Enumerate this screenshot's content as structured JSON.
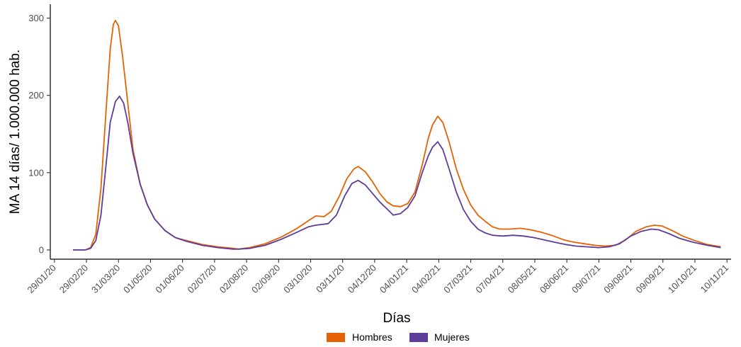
{
  "chart_data": {
    "type": "line",
    "xlabel": "Días",
    "ylabel": "MA 14 días/ 1.000.000 hab.",
    "x_axis": "date",
    "xlim": [
      "2020-01-25",
      "2021-11-14"
    ],
    "ylim": [
      -12,
      318
    ],
    "y_ticks": [
      0,
      100,
      200,
      300
    ],
    "y_tick_labels": [
      "0",
      "100",
      "200",
      "300"
    ],
    "x_ticks": [
      "2020-01-29",
      "2020-02-29",
      "2020-03-31",
      "2020-05-01",
      "2020-06-01",
      "2020-07-02",
      "2020-08-02",
      "2020-09-02",
      "2020-10-03",
      "2020-11-03",
      "2020-12-04",
      "2021-01-04",
      "2021-02-04",
      "2021-03-07",
      "2021-04-07",
      "2021-05-08",
      "2021-06-08",
      "2021-07-09",
      "2021-08-09",
      "2021-09-09",
      "2021-10-10",
      "2021-11-10"
    ],
    "x_tick_labels": [
      "29/01/20",
      "29/02/20",
      "31/03/20",
      "01/05/20",
      "01/06/20",
      "02/07/20",
      "02/08/20",
      "02/09/20",
      "03/10/20",
      "03/11/20",
      "04/12/20",
      "04/01/21",
      "04/02/21",
      "07/03/21",
      "07/04/21",
      "08/05/21",
      "08/06/21",
      "09/07/21",
      "09/08/21",
      "09/09/21",
      "10/10/21",
      "10/11/21"
    ],
    "grid": false,
    "legend_position": "bottom",
    "series": [
      {
        "name": "Hombres",
        "color": "#E66101",
        "points": [
          [
            "2020-02-16",
            0
          ],
          [
            "2020-02-28",
            0
          ],
          [
            "2020-03-04",
            3
          ],
          [
            "2020-03-09",
            20
          ],
          [
            "2020-03-14",
            80
          ],
          [
            "2020-03-19",
            180
          ],
          [
            "2020-03-23",
            260
          ],
          [
            "2020-03-26",
            292
          ],
          [
            "2020-03-28",
            297
          ],
          [
            "2020-03-31",
            290
          ],
          [
            "2020-04-04",
            250
          ],
          [
            "2020-04-09",
            190
          ],
          [
            "2020-04-14",
            130
          ],
          [
            "2020-04-21",
            85
          ],
          [
            "2020-04-28",
            58
          ],
          [
            "2020-05-05",
            40
          ],
          [
            "2020-05-15",
            25
          ],
          [
            "2020-05-25",
            16
          ],
          [
            "2020-06-05",
            12
          ],
          [
            "2020-06-20",
            7
          ],
          [
            "2020-07-05",
            4
          ],
          [
            "2020-07-20",
            2
          ],
          [
            "2020-07-25",
            1
          ],
          [
            "2020-08-05",
            3
          ],
          [
            "2020-08-20",
            8
          ],
          [
            "2020-09-05",
            17
          ],
          [
            "2020-09-20",
            28
          ],
          [
            "2020-10-01",
            38
          ],
          [
            "2020-10-08",
            44
          ],
          [
            "2020-10-16",
            43
          ],
          [
            "2020-10-23",
            50
          ],
          [
            "2020-10-31",
            70
          ],
          [
            "2020-11-07",
            92
          ],
          [
            "2020-11-14",
            105
          ],
          [
            "2020-11-18",
            108
          ],
          [
            "2020-11-25",
            101
          ],
          [
            "2020-12-02",
            88
          ],
          [
            "2020-12-09",
            73
          ],
          [
            "2020-12-16",
            62
          ],
          [
            "2020-12-22",
            57
          ],
          [
            "2020-12-29",
            56
          ],
          [
            "2021-01-05",
            60
          ],
          [
            "2021-01-12",
            75
          ],
          [
            "2021-01-19",
            110
          ],
          [
            "2021-01-25",
            145
          ],
          [
            "2021-01-29",
            162
          ],
          [
            "2021-02-03",
            173
          ],
          [
            "2021-02-08",
            165
          ],
          [
            "2021-02-14",
            140
          ],
          [
            "2021-02-21",
            105
          ],
          [
            "2021-02-28",
            78
          ],
          [
            "2021-03-07",
            58
          ],
          [
            "2021-03-14",
            45
          ],
          [
            "2021-03-21",
            37
          ],
          [
            "2021-03-28",
            30
          ],
          [
            "2021-04-04",
            27
          ],
          [
            "2021-04-14",
            27
          ],
          [
            "2021-04-24",
            28
          ],
          [
            "2021-05-04",
            26
          ],
          [
            "2021-05-14",
            23
          ],
          [
            "2021-05-24",
            19
          ],
          [
            "2021-06-05",
            13
          ],
          [
            "2021-06-15",
            10
          ],
          [
            "2021-06-25",
            8
          ],
          [
            "2021-07-05",
            6
          ],
          [
            "2021-07-15",
            5
          ],
          [
            "2021-07-25",
            6
          ],
          [
            "2021-08-04",
            13
          ],
          [
            "2021-08-14",
            24
          ],
          [
            "2021-08-24",
            30
          ],
          [
            "2021-09-01",
            32
          ],
          [
            "2021-09-08",
            31
          ],
          [
            "2021-09-18",
            25
          ],
          [
            "2021-09-28",
            18
          ],
          [
            "2021-10-10",
            12
          ],
          [
            "2021-10-22",
            7
          ],
          [
            "2021-11-04",
            4
          ]
        ]
      },
      {
        "name": "Mujeres",
        "color": "#5E3C99",
        "points": [
          [
            "2020-02-16",
            0
          ],
          [
            "2020-02-28",
            0
          ],
          [
            "2020-03-04",
            2
          ],
          [
            "2020-03-09",
            12
          ],
          [
            "2020-03-14",
            45
          ],
          [
            "2020-03-19",
            110
          ],
          [
            "2020-03-23",
            165
          ],
          [
            "2020-03-28",
            192
          ],
          [
            "2020-04-01",
            199
          ],
          [
            "2020-04-05",
            190
          ],
          [
            "2020-04-09",
            165
          ],
          [
            "2020-04-14",
            125
          ],
          [
            "2020-04-21",
            85
          ],
          [
            "2020-04-28",
            58
          ],
          [
            "2020-05-05",
            40
          ],
          [
            "2020-05-15",
            25
          ],
          [
            "2020-05-25",
            16
          ],
          [
            "2020-06-05",
            11
          ],
          [
            "2020-06-20",
            6
          ],
          [
            "2020-07-05",
            3
          ],
          [
            "2020-07-20",
            1
          ],
          [
            "2020-07-25",
            1
          ],
          [
            "2020-08-05",
            2
          ],
          [
            "2020-08-20",
            6
          ],
          [
            "2020-09-05",
            14
          ],
          [
            "2020-09-20",
            23
          ],
          [
            "2020-10-01",
            30
          ],
          [
            "2020-10-08",
            32
          ],
          [
            "2020-10-20",
            34
          ],
          [
            "2020-10-28",
            45
          ],
          [
            "2020-11-05",
            70
          ],
          [
            "2020-11-12",
            86
          ],
          [
            "2020-11-18",
            90
          ],
          [
            "2020-11-25",
            84
          ],
          [
            "2020-12-02",
            73
          ],
          [
            "2020-12-09",
            62
          ],
          [
            "2020-12-16",
            53
          ],
          [
            "2020-12-22",
            45
          ],
          [
            "2020-12-29",
            47
          ],
          [
            "2021-01-05",
            55
          ],
          [
            "2021-01-12",
            70
          ],
          [
            "2021-01-19",
            100
          ],
          [
            "2021-01-25",
            122
          ],
          [
            "2021-01-29",
            133
          ],
          [
            "2021-02-03",
            140
          ],
          [
            "2021-02-08",
            130
          ],
          [
            "2021-02-14",
            105
          ],
          [
            "2021-02-21",
            75
          ],
          [
            "2021-02-28",
            52
          ],
          [
            "2021-03-07",
            37
          ],
          [
            "2021-03-14",
            27
          ],
          [
            "2021-03-21",
            22
          ],
          [
            "2021-03-28",
            19
          ],
          [
            "2021-04-07",
            18
          ],
          [
            "2021-04-17",
            19
          ],
          [
            "2021-04-27",
            18
          ],
          [
            "2021-05-07",
            16
          ],
          [
            "2021-05-17",
            13
          ],
          [
            "2021-05-27",
            10
          ],
          [
            "2021-06-07",
            7
          ],
          [
            "2021-06-17",
            5
          ],
          [
            "2021-06-27",
            4
          ],
          [
            "2021-07-09",
            3
          ],
          [
            "2021-07-19",
            4
          ],
          [
            "2021-07-29",
            8
          ],
          [
            "2021-08-09",
            18
          ],
          [
            "2021-08-19",
            24
          ],
          [
            "2021-08-29",
            27
          ],
          [
            "2021-09-05",
            26
          ],
          [
            "2021-09-15",
            21
          ],
          [
            "2021-09-25",
            15
          ],
          [
            "2021-10-08",
            10
          ],
          [
            "2021-10-22",
            6
          ],
          [
            "2021-11-04",
            3
          ]
        ]
      }
    ]
  }
}
